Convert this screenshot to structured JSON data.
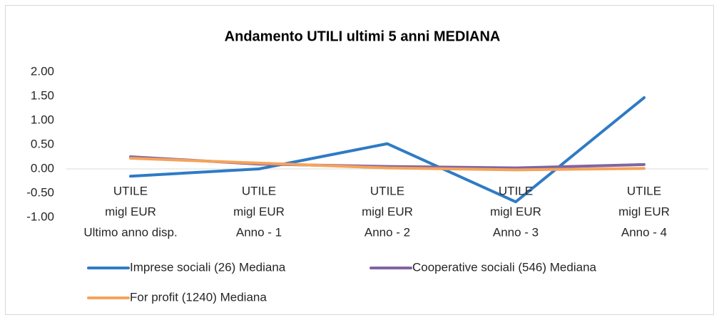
{
  "chart_data": {
    "type": "line",
    "title": "Andamento UTILI ultimi 5 anni MEDIANA",
    "categories": [
      [
        "UTILE",
        "migl EUR",
        "Ultimo anno disp."
      ],
      [
        "UTILE",
        "migl EUR",
        "Anno - 1"
      ],
      [
        "UTILE",
        "migl EUR",
        "Anno - 2"
      ],
      [
        "UTILE",
        "migl EUR",
        "Anno - 3"
      ],
      [
        "UTILE",
        "migl EUR",
        "Anno - 4"
      ]
    ],
    "series": [
      {
        "name": "Imprese sociali (26) Mediana",
        "color": "#2e7bc4",
        "values": [
          -0.15,
          0.0,
          0.52,
          -0.68,
          1.47
        ]
      },
      {
        "name": "Cooperative sociali (546) Mediana",
        "color": "#8064a2",
        "values": [
          0.25,
          0.1,
          0.05,
          0.02,
          0.09
        ]
      },
      {
        "name": "For profit (1240) Mediana",
        "color": "#f5a35a",
        "values": [
          0.22,
          0.12,
          0.02,
          -0.02,
          0.01
        ]
      }
    ],
    "ylim": [
      -1,
      2
    ],
    "yticks": [
      {
        "value": -1,
        "label": "-1.00"
      },
      {
        "value": -0.5,
        "label": "-0.50"
      },
      {
        "value": 0,
        "label": "0.00"
      },
      {
        "value": 0.5,
        "label": "0.50"
      },
      {
        "value": 1,
        "label": "1.00"
      },
      {
        "value": 1.5,
        "label": "1.50"
      },
      {
        "value": 2,
        "label": "2.00"
      }
    ],
    "grid": false,
    "legend": "bottom"
  }
}
